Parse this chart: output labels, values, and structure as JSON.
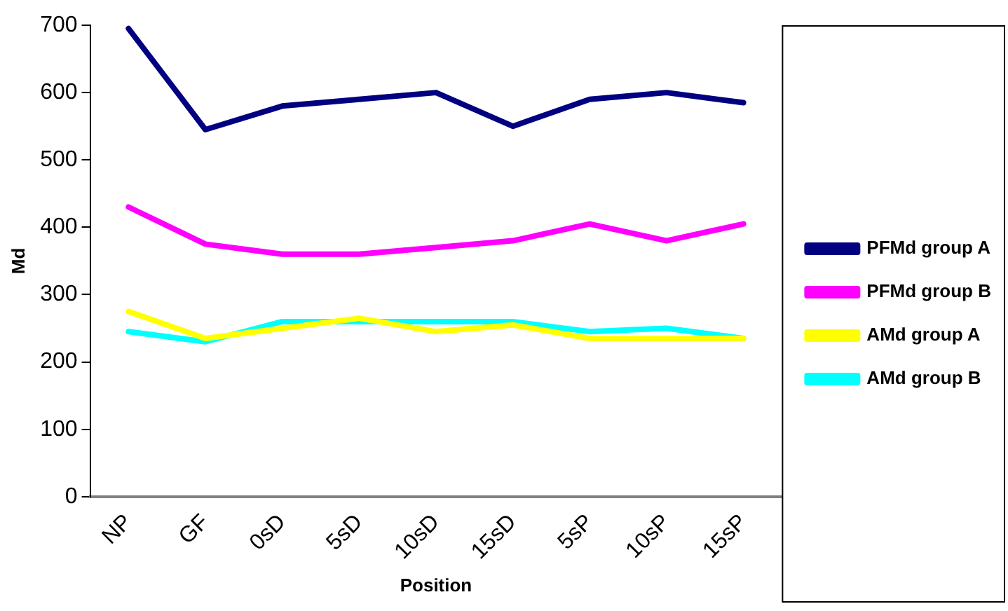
{
  "chart_data": {
    "type": "line",
    "xlabel": "Position",
    "ylabel": "Md",
    "categories": [
      "NP",
      "GF",
      "0sD",
      "5sD",
      "10sD",
      "15sD",
      "5sP",
      "10sP",
      "15sP"
    ],
    "series": [
      {
        "name": "PFMd group A",
        "color": "#000080",
        "values": [
          695,
          545,
          580,
          590,
          600,
          550,
          590,
          600,
          585
        ]
      },
      {
        "name": "PFMd group B",
        "color": "#ff00ff",
        "values": [
          430,
          375,
          360,
          360,
          370,
          380,
          405,
          380,
          405
        ]
      },
      {
        "name": "AMd group A",
        "color": "#ffff00",
        "values": [
          275,
          235,
          250,
          265,
          245,
          255,
          235,
          235,
          235
        ]
      },
      {
        "name": "AMd group B",
        "color": "#00ffff",
        "values": [
          245,
          230,
          260,
          260,
          260,
          260,
          245,
          250,
          235
        ]
      }
    ],
    "ylim": [
      0,
      700
    ],
    "yticks": [
      0,
      100,
      200,
      300,
      400,
      500,
      600,
      700
    ],
    "grid": false,
    "legend": "right",
    "marker": "none",
    "line_style": "solid"
  }
}
